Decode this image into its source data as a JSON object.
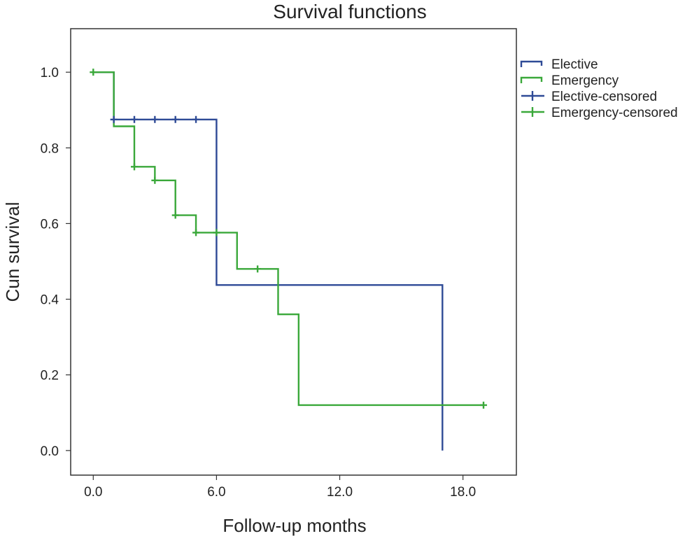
{
  "chart_data": {
    "type": "line",
    "title": "Survival functions",
    "xlabel": "Follow-up months",
    "ylabel": "Cun survival",
    "xlim": [
      -1.1,
      20.6
    ],
    "ylim": [
      -0.065,
      1.115
    ],
    "xticks": [
      0,
      6,
      12,
      18
    ],
    "xtick_labels": [
      "0.0",
      "6.0",
      "12.0",
      "18.0"
    ],
    "yticks": [
      0,
      0.2,
      0.4,
      0.6,
      0.8,
      1.0
    ],
    "ytick_labels": [
      "0.0",
      "0.2",
      "0.4",
      "0.6",
      "0.8",
      "1.0"
    ],
    "grid": false,
    "legend_position": "outside-right-top",
    "legend": [
      "Elective",
      "Emergency",
      "Elective-censored",
      "Emergency-censored"
    ],
    "series": [
      {
        "name": "Elective",
        "color": "#2e4a96",
        "step": [
          [
            0,
            1.0
          ],
          [
            1,
            0.875
          ],
          [
            6,
            0.4375
          ],
          [
            17,
            0.0
          ]
        ],
        "end_x": 17
      },
      {
        "name": "Emergency",
        "color": "#3aa83a",
        "step": [
          [
            0,
            1.0
          ],
          [
            1,
            0.857
          ],
          [
            2,
            0.75
          ],
          [
            3,
            0.714
          ],
          [
            4,
            0.622
          ],
          [
            5,
            0.576
          ],
          [
            7,
            0.48
          ],
          [
            9,
            0.36
          ],
          [
            10,
            0.12
          ]
        ],
        "end_x": 19
      }
    ],
    "censored": [
      {
        "name": "Elective-censored",
        "color": "#2e4a96",
        "points": [
          [
            1,
            0.875
          ],
          [
            2,
            0.875
          ],
          [
            3,
            0.875
          ],
          [
            4,
            0.875
          ],
          [
            5,
            0.875
          ]
        ]
      },
      {
        "name": "Emergency-censored",
        "color": "#3aa83a",
        "points": [
          [
            0,
            1.0
          ],
          [
            2,
            0.75
          ],
          [
            3,
            0.714
          ],
          [
            4,
            0.622
          ],
          [
            5,
            0.576
          ],
          [
            6,
            0.576
          ],
          [
            8,
            0.48
          ],
          [
            19,
            0.12
          ]
        ]
      }
    ]
  }
}
